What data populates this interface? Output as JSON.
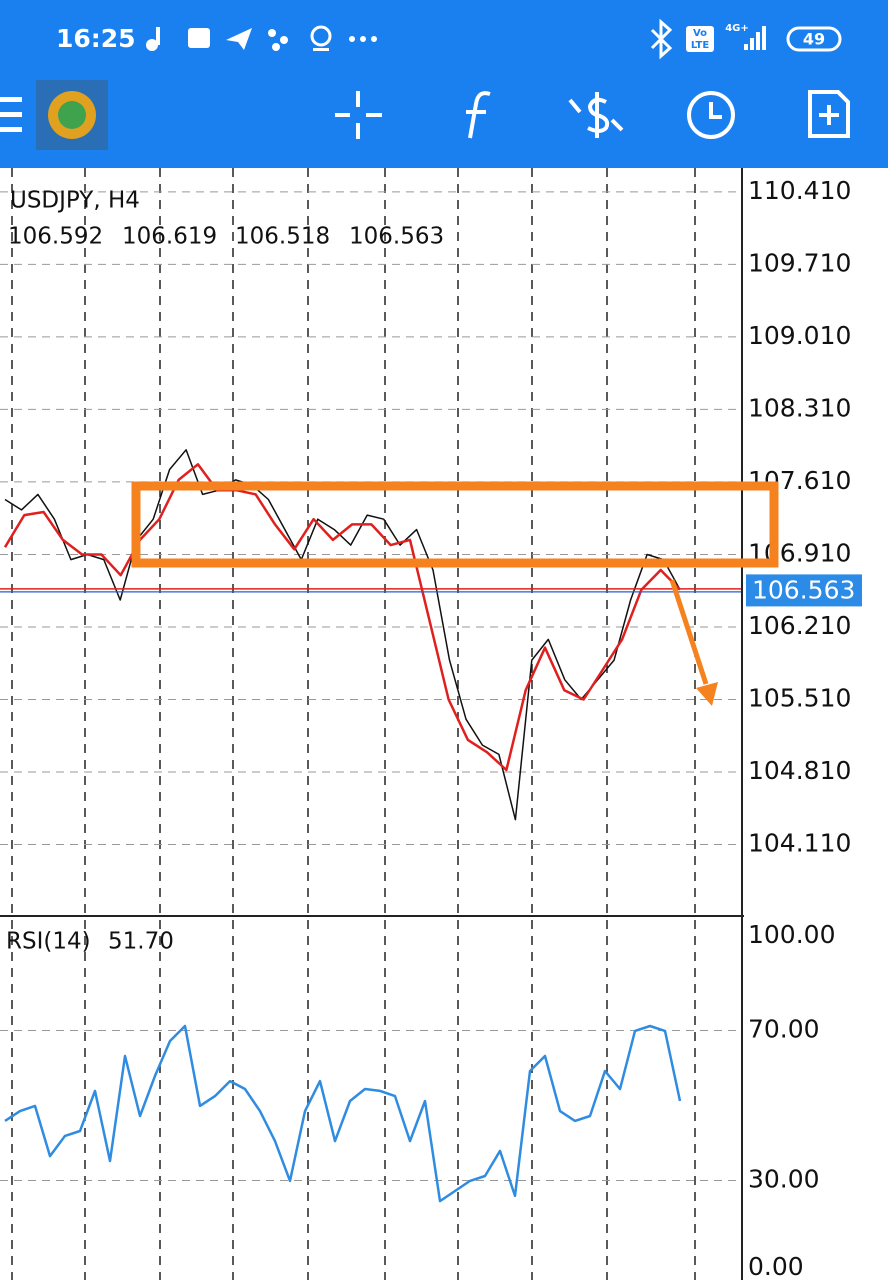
{
  "status_bar": {
    "time": "16:25",
    "volte_top": "Vo",
    "volte_bottom": "LTE",
    "network": "4G+",
    "battery": "49"
  },
  "chart_data": [
    {
      "type": "line",
      "title": "USDJPY, H4",
      "ohlc": [
        106.592,
        106.619,
        106.518,
        106.563
      ],
      "ylim": [
        103.43,
        110.64
      ],
      "yticks": [
        {
          "value": 110.41,
          "label": "110.410"
        },
        {
          "value": 109.71,
          "label": "109.710"
        },
        {
          "value": 109.01,
          "label": "109.010"
        },
        {
          "value": 108.31,
          "label": "108.310"
        },
        {
          "value": 107.61,
          "label": "107.610"
        },
        {
          "value": 106.91,
          "label": "106.910"
        },
        {
          "value": 106.21,
          "label": "106.210"
        },
        {
          "value": 105.51,
          "label": "105.510"
        },
        {
          "value": 104.81,
          "label": "104.810"
        },
        {
          "value": 104.11,
          "label": "104.110"
        }
      ],
      "grid": true,
      "series": [
        {
          "color": "#111111",
          "values": [
            107.44,
            107.34,
            107.49,
            107.25,
            106.86,
            106.91,
            106.86,
            106.47,
            107.05,
            107.25,
            107.73,
            107.92,
            107.49,
            107.53,
            107.63,
            107.58,
            107.44,
            107.15,
            106.86,
            107.25,
            107.15,
            107.0,
            107.29,
            107.25,
            107.0,
            107.15,
            106.76,
            105.89,
            105.32,
            105.07,
            104.98,
            104.35,
            105.89,
            106.09,
            105.7,
            105.51,
            105.7,
            105.89,
            106.47,
            106.91,
            106.86,
            106.57
          ]
        },
        {
          "color": "#e0201f",
          "values": [
            106.98,
            107.29,
            107.32,
            107.05,
            106.91,
            106.91,
            106.71,
            107.05,
            107.25,
            107.63,
            107.78,
            107.53,
            107.53,
            107.49,
            107.2,
            106.96,
            107.25,
            107.05,
            107.2,
            107.2,
            107.0,
            107.05,
            106.28,
            105.51,
            105.12,
            105.0,
            104.83,
            105.6,
            106.01,
            105.6,
            105.51,
            105.8,
            106.09,
            106.57,
            106.76,
            106.57
          ]
        }
      ]
    },
    {
      "type": "line",
      "title": "RSI(14)",
      "value": 51.7,
      "value_label": "51.70",
      "ylim": [
        0,
        100
      ],
      "yticks": [
        {
          "value": 100,
          "label": "100.00"
        },
        {
          "value": 70,
          "label": "70.00"
        },
        {
          "value": 30,
          "label": "30.00"
        },
        {
          "value": 0,
          "label": "0.00"
        }
      ],
      "grid": true,
      "series": [
        {
          "color": "#2f8ce0",
          "values": [
            45.9,
            48.5,
            49.9,
            36.5,
            41.9,
            43.2,
            53.9,
            35.2,
            63.2,
            47.2,
            57.9,
            67.2,
            71.2,
            49.9,
            52.5,
            56.5,
            54.4,
            48.5,
            40.5,
            29.9,
            48.5,
            56.5,
            40.5,
            51.2,
            54.4,
            53.9,
            52.5,
            40.5,
            51.2,
            24.5,
            27.2,
            29.9,
            31.2,
            37.9,
            25.9,
            59.2,
            63.2,
            48.5,
            45.9,
            47.2,
            59.2,
            54.4,
            69.9,
            71.2,
            69.9,
            51.2
          ]
        }
      ]
    }
  ]
}
